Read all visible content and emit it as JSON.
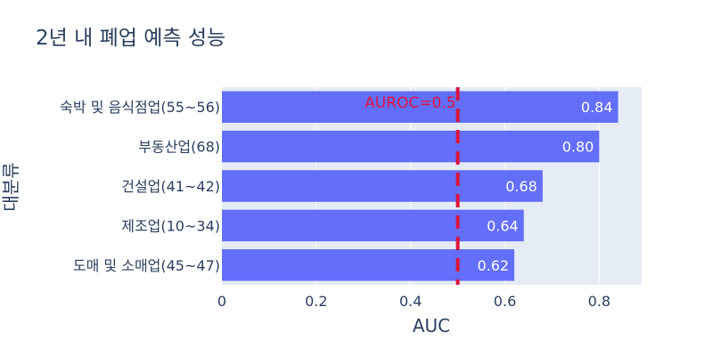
{
  "chart_data": {
    "type": "bar",
    "orientation": "horizontal",
    "title": "2년 내 폐업 예측 성능",
    "xlabel": "AUC",
    "ylabel": "대분류",
    "xlim": [
      0,
      0.89
    ],
    "xticks": [
      0,
      0.2,
      0.4,
      0.6,
      0.8
    ],
    "xtick_labels": [
      "0",
      "0.2",
      "0.4",
      "0.6",
      "0.8"
    ],
    "categories": [
      "숙박 및 음식점업(55~56)",
      "부동산업(68)",
      "건설업(41~42)",
      "제조업(10~34)",
      "도매 및 소매업(45~47)"
    ],
    "values": [
      0.84,
      0.8,
      0.68,
      0.64,
      0.62
    ],
    "data_labels": [
      "0.84",
      "0.80",
      "0.68",
      "0.64",
      "0.62"
    ],
    "reference_line": {
      "x": 0.5,
      "label": "AUROC=0.5",
      "color": "#dc143c",
      "style": "dashed"
    },
    "bar_color": "#636efa",
    "plot_background": "#e5ecf6",
    "grid": true
  }
}
